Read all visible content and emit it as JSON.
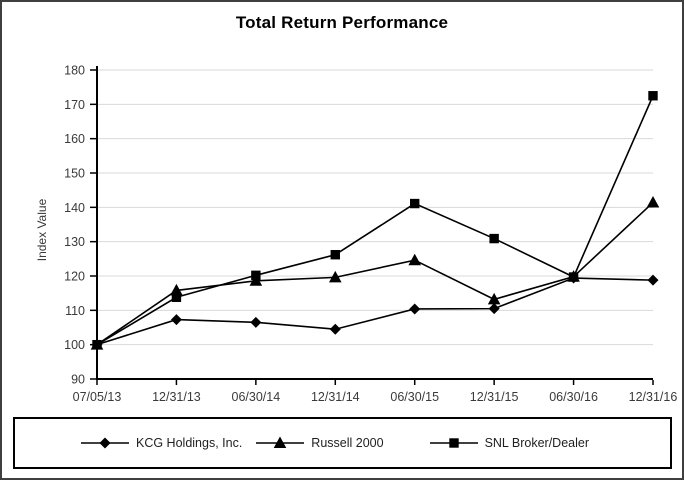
{
  "window": {
    "background": "#ffffff",
    "frame_border_color": "#3f3f3f"
  },
  "chart_data": {
    "type": "line",
    "title": "Total Return Performance",
    "xlabel": "",
    "ylabel": "Index Value",
    "ylim": [
      90,
      180
    ],
    "ytick_step": 10,
    "grid": true,
    "grid_color": "#d9d9d9",
    "axis_color": "#000000",
    "text_color": "#3a3a3a",
    "line_color": "#000000",
    "legend_position": "bottom-boxed",
    "categories": [
      "07/05/13",
      "12/31/13",
      "06/30/14",
      "12/31/14",
      "06/30/15",
      "12/31/15",
      "06/30/16",
      "12/31/16"
    ],
    "series": [
      {
        "name": "KCG Holdings, Inc.",
        "marker": "diamond",
        "color": "#000000",
        "values": [
          100,
          107.3,
          106.5,
          104.5,
          110.4,
          110.5,
          119.4,
          118.8
        ]
      },
      {
        "name": "Russell 2000",
        "marker": "triangle",
        "color": "#000000",
        "values": [
          100,
          115.8,
          118.6,
          119.6,
          124.6,
          113.2,
          119.8,
          141.4
        ]
      },
      {
        "name": "SNL Broker/Dealer",
        "marker": "square",
        "color": "#000000",
        "values": [
          100,
          113.8,
          120.2,
          126.2,
          141.1,
          130.9,
          119.7,
          172.5
        ]
      }
    ]
  }
}
